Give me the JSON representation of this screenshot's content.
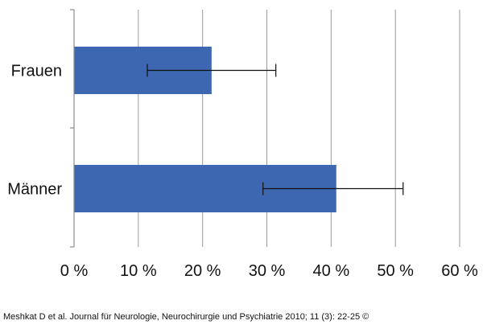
{
  "chart_data": {
    "type": "bar",
    "orientation": "horizontal",
    "categories": [
      "Frauen",
      "Männer"
    ],
    "values": [
      21.4,
      40.8
    ],
    "error_low": [
      11.4,
      29.4
    ],
    "error_high": [
      31.4,
      51.2
    ],
    "xlim": [
      0,
      60
    ],
    "xticks": [
      0,
      10,
      20,
      30,
      40,
      50,
      60
    ],
    "xtick_labels": [
      "0 %",
      "10 %",
      "20 %",
      "30 %",
      "40 %",
      "50 %",
      "60 %"
    ],
    "grid": "vertical",
    "bar_color": "#3d67b1",
    "title": "",
    "xlabel": "",
    "ylabel": ""
  },
  "source_note": "Meshkat D et al. Journal für Neurologie, Neurochirurgie und Psychiatrie 2010; 11 (3): 22-25 ©"
}
